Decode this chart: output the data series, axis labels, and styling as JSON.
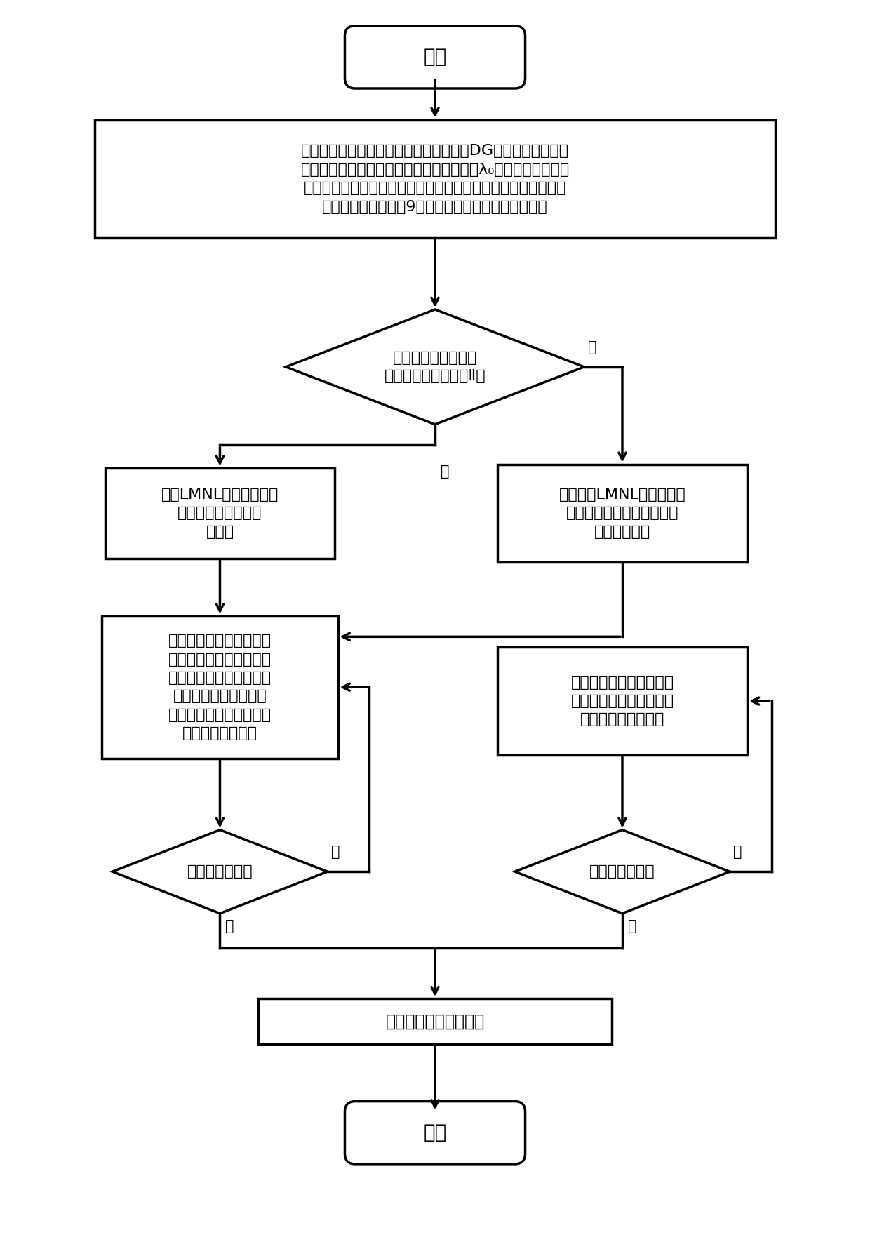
{
  "bg_color": "#ffffff",
  "line_color": "#000000",
  "text_color": "#000000",
  "start_text": "开始",
  "end_text": "结束",
  "input_text": "输入交直流混合微电网系统线路、负荷、DG装置的参数及运行\n方式；设置负荷变化节点号，初始点对应的λ₀值，变化负荷增长\n方式及预设增长量；根据运行方式判别所属交直流混合微电网运\n行系统类型，统计出9种节点类型的个数及对应节点号",
  "diamond_text": "是否属于交直流混合\n微电网运行系统类型Ⅱ？",
  "left_box1_text": "采用LMNL算法求解交、\n直流微电网子系统的\n初始点",
  "right_box1_text": "采用基于LMNL算法的交替\n迭代方法求解交直流互连微\n电网的初始点",
  "left_box2_text": "预测环节采用局部参数化\n方法和切线方法、校正环\n节采用超球面参数化方法\n和组合牛顿方法，进行\n交、直流微电网子系统的\n预测校正环节计算",
  "right_box2_text": "采用双向迭代预测校正方\n法进行交直流互连微电网\n的预测校正环节计算",
  "left_diamond_text": "满足临界判据？",
  "right_diamond_text": "满足临界判据？",
  "output_text": "输出连续潮流计算结果",
  "yes_label": "是",
  "no_label": "否"
}
